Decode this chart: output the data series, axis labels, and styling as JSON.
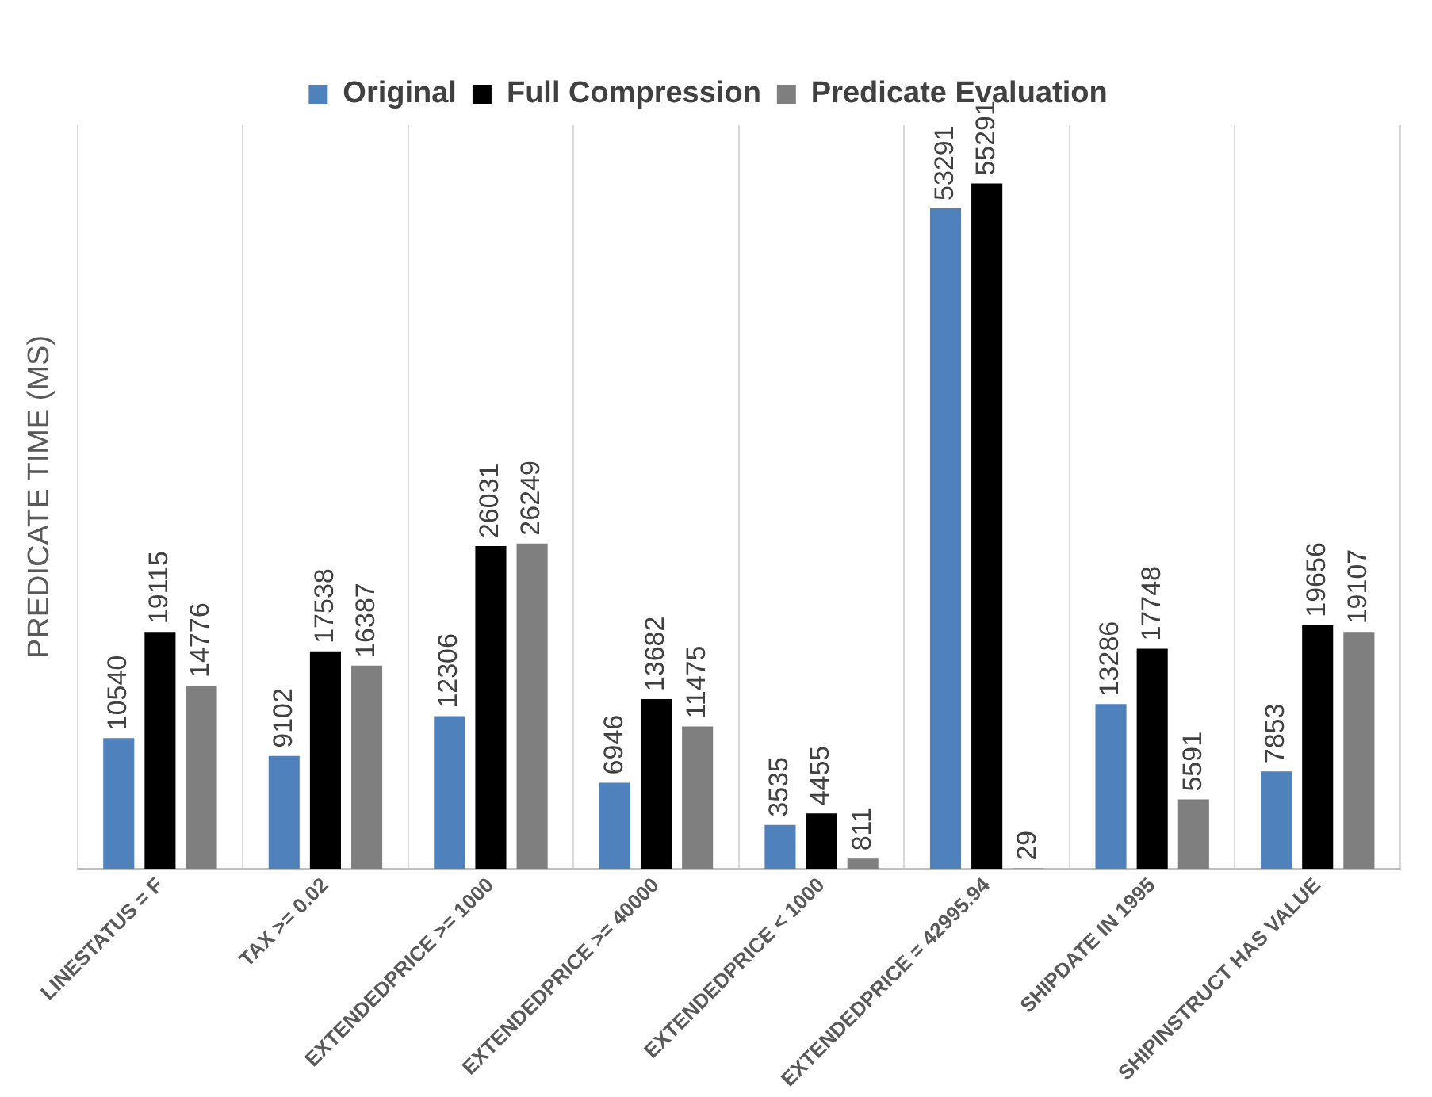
{
  "chart_data": {
    "type": "bar",
    "ylabel": "PREDICATE TIME (MS)",
    "categories": [
      "LINESTATUS = F",
      "TAX >= 0.02",
      "EXTENDEDPRICE >= 1000",
      "EXTENDEDPRICE >= 40000",
      "EXTENDEDPRICE < 1000",
      "EXTENDEDPRICE = 42995.94",
      "SHIPDATE IN 1995",
      "SHIPINSTRUCT HAS VALUE"
    ],
    "series": [
      {
        "name": "Original",
        "color": "#4f81bd",
        "values": [
          10540,
          9102,
          12306,
          6946,
          3535,
          53291,
          13286,
          7853
        ]
      },
      {
        "name": "Full Compression",
        "color": "#000000",
        "values": [
          19115,
          17538,
          26031,
          13682,
          4455,
          55291,
          17748,
          19656
        ]
      },
      {
        "name": "Predicate Evaluation",
        "color": "#7f7f7f",
        "values": [
          14776,
          16387,
          26249,
          11475,
          811,
          29,
          5591,
          19107
        ]
      }
    ],
    "data_labels": true,
    "grid": "x",
    "legend": "top"
  }
}
